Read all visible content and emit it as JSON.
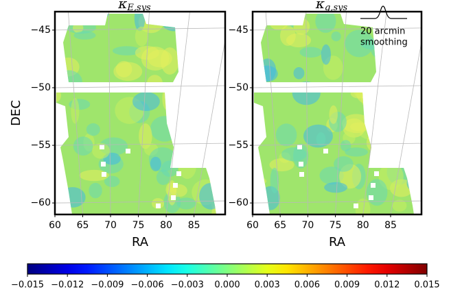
{
  "chart_data": [
    {
      "type": "map",
      "title": {
        "symbol": "κ",
        "subscript": "E,sys"
      },
      "xlabel": "RA",
      "ylabel": "DEC",
      "xlim": [
        60,
        90.6
      ],
      "ylim": [
        -61,
        -43.4
      ],
      "xticks": [
        60,
        65,
        70,
        75,
        80,
        85
      ],
      "yticks": [
        {
          "value": -45,
          "label": "−45"
        },
        {
          "value": -50,
          "label": "−50"
        },
        {
          "value": -55,
          "label": "−55"
        },
        {
          "value": -60,
          "label": "−60"
        }
      ],
      "grid": true
    },
    {
      "type": "map",
      "title": {
        "symbol": "κ",
        "subscript": "g,sys"
      },
      "xlabel": "RA",
      "xlim": [
        60,
        90.6
      ],
      "ylim": [
        -61,
        -43.4
      ],
      "xticks": [
        60,
        65,
        70,
        75,
        80,
        85
      ],
      "yticks": [
        {
          "value": -45,
          "label": "−45"
        },
        {
          "value": -50,
          "label": "−50"
        },
        {
          "value": -55,
          "label": "−55"
        },
        {
          "value": -60,
          "label": "−60"
        }
      ],
      "grid": true,
      "annotation": [
        "20 arcmin",
        "smoothing"
      ]
    },
    {
      "type": "colorbar",
      "colormap": "jet",
      "clim": [
        -0.015,
        0.015
      ],
      "ticks": [
        {
          "value": -0.015,
          "label": "−0.015"
        },
        {
          "value": -0.012,
          "label": "−0.012"
        },
        {
          "value": -0.009,
          "label": "−0.009"
        },
        {
          "value": -0.006,
          "label": "−0.006"
        },
        {
          "value": -0.003,
          "label": "−0.003"
        },
        {
          "value": 0,
          "label": "0.000"
        },
        0.003,
        0.006,
        0.009,
        0.012,
        0.015
      ]
    }
  ]
}
